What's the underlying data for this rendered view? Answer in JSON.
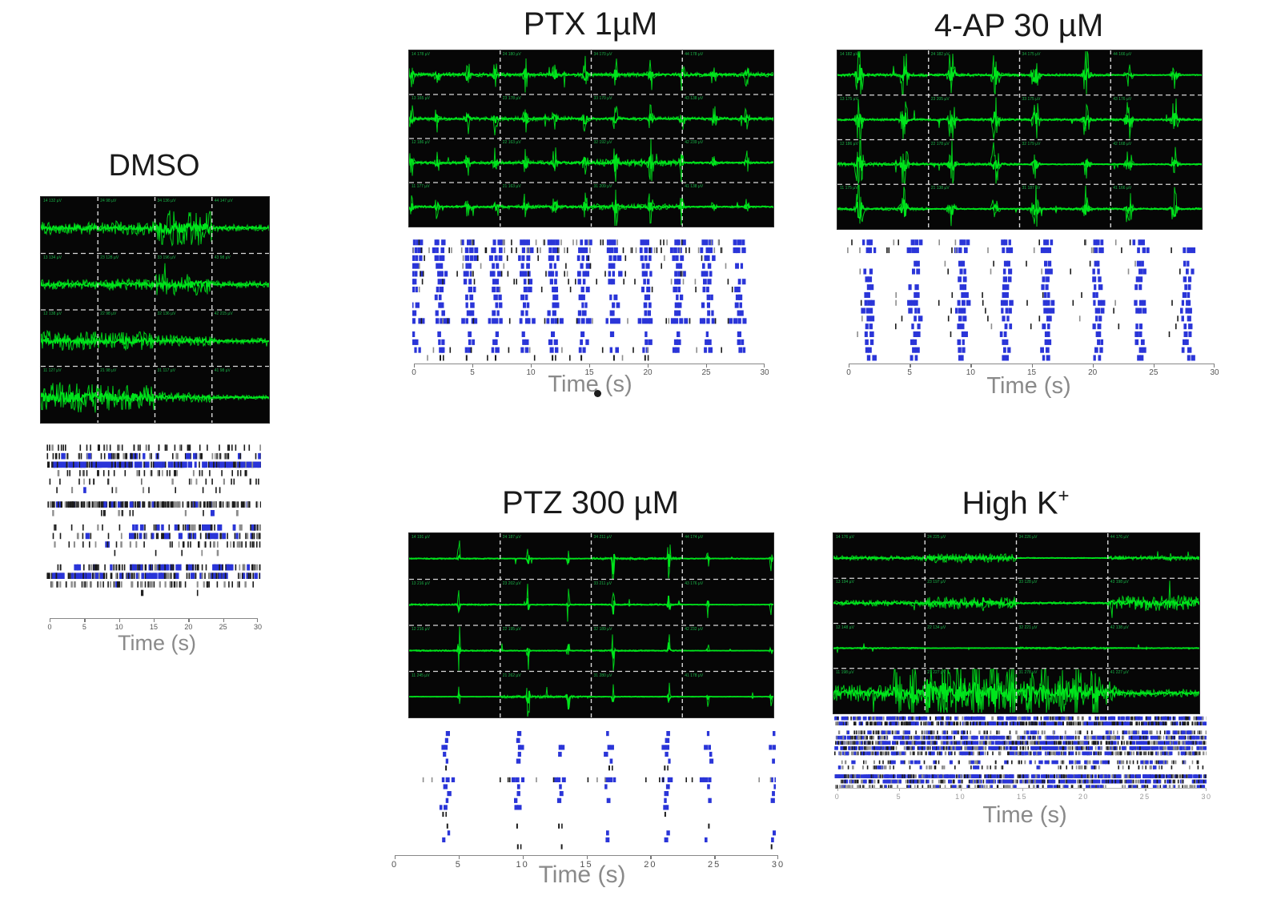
{
  "figure": {
    "xlabel": "Time (s)",
    "x_axis": {
      "min": 0,
      "max": 30,
      "ticks": [
        0,
        5,
        10,
        15,
        20,
        25,
        30
      ],
      "unit": "s"
    },
    "colors": {
      "trace_green": "#00e41c",
      "panel_bg": "#060606",
      "divider": "#d8d8d8",
      "raster_blue": "#2a35d8",
      "raster_black": "#1b1b1b",
      "raster_gray": "#8d8d8d",
      "axis_line": "#888888",
      "axis_text": "#555555",
      "xlabel_text": "#8a8a8a",
      "title_text": "#1a1a1a",
      "channel_label_green": "#19b347"
    }
  },
  "chart_data": [
    {
      "id": "dmso",
      "title": "DMSO",
      "type": "mea-trace-and-raster",
      "x_range_s": [
        0,
        30
      ],
      "burst_times_s": [],
      "activity_note": "irregular asynchronous spiking, no network bursts",
      "channel_labels": [
        "14 132 µV",
        "24 98 µV",
        "34 136 µV",
        "44 147 µV",
        "13 134 µV",
        "23 128 µV",
        "33 196 µV",
        "43 98 µV",
        "12 138 µV",
        "22 98 µV",
        "32 136 µV",
        "42 215 µV",
        "11 127 µV",
        "21 98 µV",
        "31 117 µV",
        "41 98 µV"
      ],
      "trace": {
        "noise": 0.5,
        "burst_amp": 0,
        "burst_width": 0.1,
        "rows": [
          {
            "amps": [
              0.55,
              0.6,
              1.5,
              0.3
            ]
          },
          {
            "amps": [
              0.45,
              0.5,
              0.9,
              0.3
            ]
          },
          {
            "amps": [
              0.85,
              0.8,
              0.5,
              0.25
            ]
          },
          {
            "amps": [
              1.3,
              1.1,
              0.45,
              0.2
            ]
          }
        ]
      },
      "raster": {
        "mode": "random",
        "gap_after": [
          5,
          7,
          11
        ],
        "rows": [
          {
            "d": 1.6,
            "b": 0.04,
            "g": 0.1
          },
          {
            "d": 2.6,
            "b": 0.12,
            "g": 0.25
          },
          {
            "d": 6.5,
            "b": 0.5,
            "g": 0.1
          },
          {
            "d": 1.3,
            "b": 0.03,
            "g": 0.35
          },
          {
            "d": 0.8,
            "b": 0.02,
            "g": 0.3
          },
          {
            "d": 0.4,
            "b": 0.08,
            "g": 0.2
          },
          {
            "d": 8.0,
            "b": 0.1,
            "g": 0.25
          },
          {
            "d": 0.5,
            "b": 0.02,
            "g": 0.4
          },
          {
            "d": 2.4,
            "b": 0.25,
            "g": 0.2,
            "skew": 1
          },
          {
            "d": 2.4,
            "b": 0.2,
            "g": 0.25,
            "skew": 1
          },
          {
            "d": 1.6,
            "b": 0.08,
            "g": 0.3,
            "skew": 0.5
          },
          {
            "d": 0.15,
            "b": 0,
            "g": 0.5
          },
          {
            "d": 3.6,
            "b": 0.3,
            "g": 0.15,
            "skew": 0.5
          },
          {
            "d": 5.0,
            "b": 0.3,
            "g": 0.15
          },
          {
            "d": 2.2,
            "b": 0.08,
            "g": 0.35
          },
          {
            "d": 0.1,
            "b": 0,
            "g": 0
          }
        ]
      }
    },
    {
      "id": "ptx",
      "title": "PTX 1µM",
      "type": "mea-trace-and-raster",
      "x_range_s": [
        0,
        30
      ],
      "burst_times_s": [
        0.2,
        2.3,
        4.8,
        7.1,
        9.6,
        12.0,
        14.5,
        17.0,
        19.9,
        22.5,
        25.1,
        27.8
      ],
      "activity_note": "regular synchronized network bursts ~every 2.5 s",
      "channel_labels": [
        "14 178 µV",
        "24 180 µV",
        "34 170 µV",
        "44 178 µV",
        "13 165 µV",
        "23 178 µV",
        "33 170 µV",
        "43 138 µV",
        "12 186 µV",
        "22 163 µV",
        "32 192 µV",
        "42 239 µV",
        "11 177 µV",
        "21 163 µV",
        "31 209 µV",
        "41 138 µV"
      ],
      "trace": {
        "noise": 0.12,
        "burst_amp": 1.0,
        "burst_width": 0.12,
        "rows": [
          {
            "amps": [
              1.0,
              1.0,
              1.0,
              1.0
            ]
          },
          {
            "amps": [
              0.9,
              1.0,
              0.9,
              0.8
            ]
          },
          {
            "amps": [
              0.8,
              1.0,
              1.6,
              0.6
            ]
          },
          {
            "amps": [
              0.7,
              0.9,
              1.4,
              0.5
            ]
          }
        ]
      },
      "raster": {
        "mode": "sync",
        "gap_after": [
          10
        ],
        "rows": [
          {
            "bk": 3,
            "nb": 3
          },
          {
            "bk": 4,
            "nb": 3
          },
          {
            "bk": 1,
            "nb": 3
          },
          {
            "bk": 1,
            "nb": 2
          },
          {
            "bk": 2,
            "nb": 3
          },
          {
            "bk": 2,
            "nb": 2
          },
          {
            "bk": 1,
            "nb": 2
          },
          {
            "bk": 0,
            "nb": 2
          },
          {
            "bk": 0,
            "nb": 2
          },
          {
            "bk": 0,
            "nb": 2
          },
          {
            "bk": 2,
            "nb": 4
          },
          {
            "bk": 0,
            "nb": 1,
            "p": 0.9
          },
          {
            "bk": 0,
            "nb": 2,
            "p": 0.9
          },
          {
            "bk": 1,
            "nb": 2,
            "p": 0.9
          },
          {
            "bk": 1,
            "nb": 0,
            "p": 0.6,
            "black": 1
          }
        ]
      }
    },
    {
      "id": "4ap",
      "title": "4-AP 30 µM",
      "type": "mea-trace-and-raster",
      "x_range_s": [
        0,
        30
      ],
      "burst_times_s": [
        1.8,
        5.5,
        9.4,
        13.0,
        16.3,
        20.5,
        24.0,
        27.8
      ],
      "activity_note": "strong synchronized network bursts ~every 3.7 s",
      "channel_labels": [
        "14 182 µV",
        "24 182 µV",
        "34 175 µV",
        "44 166 µV",
        "13 175 µV",
        "23 205 µV",
        "33 175 µV",
        "43 176 µV",
        "12 186 µV",
        "22 178 µV",
        "32 179 µV",
        "42 168 µV",
        "11 175 µV",
        "21 138 µV",
        "31 187 µV",
        "41 166 µV"
      ],
      "trace": {
        "noise": 0.08,
        "burst_amp": 1.5,
        "burst_width": 0.18,
        "rows": [
          {
            "amps": [
              1.2,
              1.1,
              1.0,
              0.5
            ]
          },
          {
            "amps": [
              0.9,
              1.0,
              0.9,
              0.9
            ]
          },
          {
            "amps": [
              1.3,
              1.0,
              0.5,
              0.6
            ]
          },
          {
            "amps": [
              1.1,
              0.6,
              0.9,
              0.8
            ]
          }
        ]
      },
      "raster": {
        "mode": "sync",
        "gap_after": [
          1
        ],
        "rows": [
          {
            "bk": 2,
            "nb": 3
          },
          {
            "bk": 2,
            "nb": 3
          },
          {
            "bk": 1,
            "nb": 2
          },
          {
            "bk": 1,
            "nb": 2
          },
          {
            "bk": 0,
            "nb": 2
          },
          {
            "bk": 0,
            "nb": 2
          },
          {
            "bk": 1,
            "nb": 2
          },
          {
            "bk": 1,
            "nb": 3
          },
          {
            "bk": 1,
            "nb": 3
          },
          {
            "bk": 1,
            "nb": 2
          },
          {
            "bk": 1,
            "nb": 2
          },
          {
            "bk": 1,
            "nb": 2
          },
          {
            "bk": 0,
            "nb": 2
          },
          {
            "bk": 0,
            "nb": 2
          },
          {
            "bk": 0,
            "nb": 2
          }
        ]
      }
    },
    {
      "id": "ptz",
      "title": "PTZ 300 µM",
      "type": "mea-trace-and-raster",
      "x_range_s": [
        0,
        30
      ],
      "burst_times_s": [
        4.1,
        9.8,
        13.1,
        16.8,
        21.4,
        24.6,
        29.8
      ],
      "activity_note": "sparse tall synchronized paroxysmal events",
      "channel_labels": [
        "14 191 µV",
        "24 187 µV",
        "34 211 µV",
        "44 174 µV",
        "13 216 µV",
        "23 202 µV",
        "33 211 µV",
        "43 176 µV",
        "12 216 µV",
        "22 195 µV",
        "32 189 µV",
        "42 232 µV",
        "11 245 µV",
        "21 262 µV",
        "31 280 µV",
        "41 178 µV"
      ],
      "trace": {
        "noise": 0.05,
        "burst_amp": 1.8,
        "burst_width": 0.06,
        "rows": [
          {
            "amps": [
              0.9,
              0.5,
              1.5,
              0.6
            ]
          },
          {
            "amps": [
              1.1,
              0.8,
              1.0,
              0.4
            ]
          },
          {
            "amps": [
              1.0,
              0.7,
              0.9,
              0.3
            ]
          },
          {
            "amps": [
              0.3,
              1.6,
              0.6,
              0.35
            ]
          }
        ]
      },
      "raster": {
        "mode": "sync",
        "gap_after": [
          5,
          11
        ],
        "rows": [
          {
            "nb": 1,
            "p": 0.9
          },
          {
            "nb": 1,
            "p": 0.6
          },
          {
            "nb": 2,
            "p": 0.8
          },
          {
            "nb": 1,
            "p": 0.8
          },
          {
            "nb": 1,
            "p": 0.7
          },
          {
            "nb": 0,
            "p": 0.5,
            "black": 1
          },
          {
            "nb": 3,
            "p": 1.0,
            "bk": 3
          },
          {
            "nb": 1,
            "p": 0.8
          },
          {
            "nb": 1,
            "p": 0.7
          },
          {
            "nb": 1,
            "p": 0.8
          },
          {
            "nb": 2,
            "p": 0.8
          },
          {
            "nb": 0,
            "p": 0.5,
            "black": 1
          },
          {
            "nb": 0,
            "p": 0.3,
            "black": 1
          },
          {
            "nb": 1,
            "p": 0.7
          },
          {
            "nb": 1,
            "p": 0.6
          },
          {
            "nb": 0,
            "p": 0.8,
            "black": 1
          }
        ]
      }
    },
    {
      "id": "highk",
      "title": "High K",
      "title_sup": "+",
      "type": "mea-trace-and-raster",
      "x_range_s": [
        0,
        30
      ],
      "burst_times_s": [],
      "activity_note": "dense continuous tonic firing on all channels",
      "channel_labels": [
        "14 176 µV",
        "24 225 µV",
        "34 226 µV",
        "44 176 µV",
        "13 194 µV",
        "23 197 µV",
        "33 128 µV",
        "43 198 µV",
        "12 148 µV",
        "22 134 µV",
        "32 221 µV",
        "42 138 µV",
        "11 198 µV",
        "21 227 µV",
        "31 278 µV",
        "41 227 µV"
      ],
      "trace": {
        "noise": 0.25,
        "burst_amp": 0,
        "burst_width": 0.2,
        "rows": [
          {
            "amps": [
              0.5,
              1.0,
              0.12,
              0.5
            ],
            "noise": 0.25
          },
          {
            "amps": [
              0.55,
              1.1,
              0.25,
              1.4
            ],
            "noise": 0.3
          },
          {
            "amps": [
              0.35,
              0.15,
              0.5,
              0.3
            ],
            "noise": 0.12
          },
          {
            "amps": [
              1.0,
              1.6,
              1.1,
              0.45
            ],
            "noise": 0.45,
            "bursts": [
              5.2,
              6.5,
              7.8,
              9.1,
              10.4,
              11.8,
              13.2,
              14.6,
              16.0,
              17.3,
              18.7,
              20.0,
              21.4,
              22.8
            ],
            "burst_amp": 1.2,
            "burst_width": 0.25
          }
        ]
      },
      "raster": {
        "mode": "random",
        "gap_after": [
          1,
          6,
          8
        ],
        "rows": [
          {
            "d": 8,
            "b": 0.45,
            "g": 0.2
          },
          {
            "d": 14,
            "b": 0.25,
            "g": 0.15
          },
          {
            "d": 5,
            "b": 0.25,
            "g": 0.45
          },
          {
            "d": 10,
            "b": 0.35,
            "g": 0.3
          },
          {
            "d": 12,
            "b": 0.3,
            "g": 0.3
          },
          {
            "d": 11,
            "b": 0.35,
            "g": 0.25
          },
          {
            "d": 9,
            "b": 0.25,
            "g": 0.4
          },
          {
            "d": 4,
            "b": 0.3,
            "g": 0.45
          },
          {
            "d": 2.5,
            "b": 0.15,
            "g": 0.5
          },
          {
            "d": 12,
            "b": 0.4,
            "g": 0.2
          },
          {
            "d": 10,
            "b": 0.35,
            "g": 0.25
          },
          {
            "d": 5,
            "b": 0.2,
            "g": 0.4
          }
        ]
      }
    }
  ]
}
